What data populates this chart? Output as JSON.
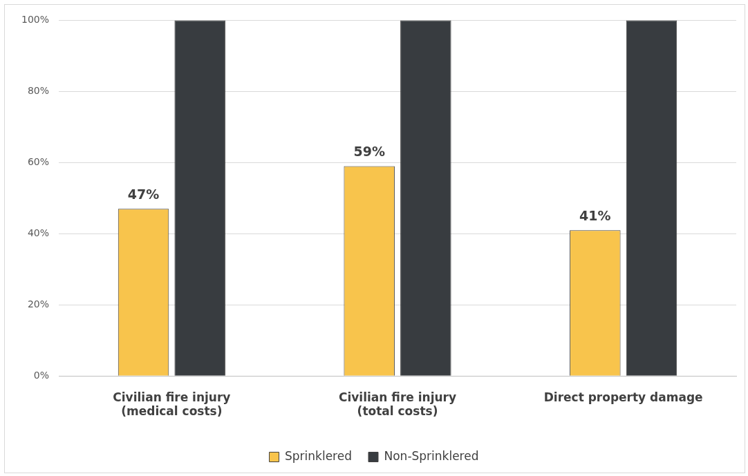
{
  "chart_data": {
    "type": "bar",
    "categories": [
      "Civilian fire injury\n(medical costs)",
      "Civilian fire injury\n(total costs)",
      "Direct property damage"
    ],
    "series": [
      {
        "name": "Sprinklered",
        "color": "#f8c44c",
        "values": [
          47,
          59,
          41
        ],
        "value_labels": [
          "47%",
          "59%",
          "41%"
        ]
      },
      {
        "name": "Non-Sprinklered",
        "color": "#383c40",
        "values": [
          100,
          100,
          100
        ]
      }
    ],
    "ylim": [
      0,
      100
    ],
    "yticks": [
      {
        "value": 0,
        "label": "0%"
      },
      {
        "value": 20,
        "label": "20%"
      },
      {
        "value": 40,
        "label": "40%"
      },
      {
        "value": 60,
        "label": "60%"
      },
      {
        "value": 80,
        "label": "80%"
      },
      {
        "value": 100,
        "label": "100%"
      }
    ],
    "grid": "y",
    "legend": "bottom"
  }
}
